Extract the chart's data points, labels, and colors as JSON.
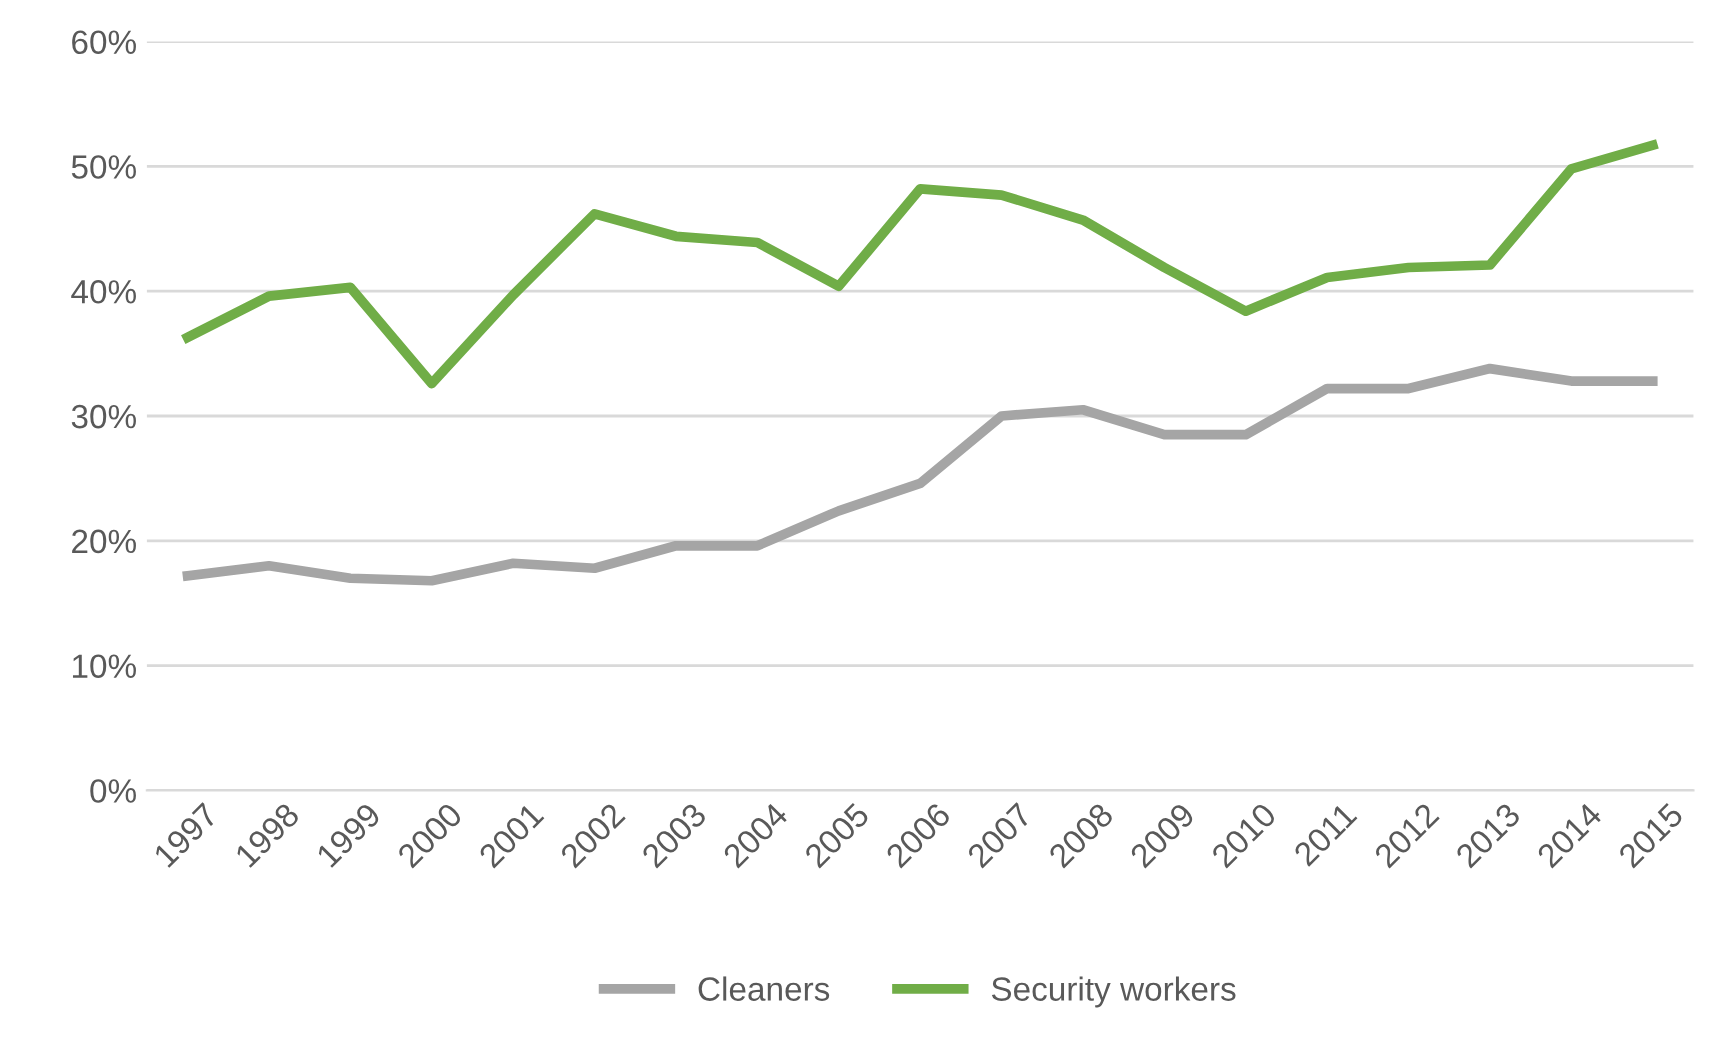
{
  "chart_data": {
    "type": "line",
    "categories": [
      "1997",
      "1998",
      "1999",
      "2000",
      "2001",
      "2002",
      "2003",
      "2004",
      "2005",
      "2006",
      "2007",
      "2008",
      "2009",
      "2010",
      "2011",
      "2012",
      "2013",
      "2014",
      "2015"
    ],
    "series": [
      {
        "name": "Cleaners",
        "color": "#a5a5a5",
        "values": [
          17.2,
          18.0,
          17.0,
          16.8,
          18.2,
          17.8,
          19.6,
          19.6,
          22.4,
          24.6,
          30.0,
          30.5,
          28.5,
          28.5,
          32.2,
          32.2,
          33.8,
          32.8,
          32.8
        ]
      },
      {
        "name": "Security workers",
        "color": "#70ad47",
        "values": [
          36.3,
          39.6,
          40.3,
          32.6,
          39.7,
          46.2,
          44.4,
          43.9,
          40.4,
          48.2,
          47.7,
          45.7,
          41.9,
          38.4,
          41.1,
          41.9,
          42.1,
          49.8,
          51.7
        ]
      }
    ],
    "ylim": [
      0,
      60
    ],
    "yticks": [
      {
        "value": 0,
        "label": "0%"
      },
      {
        "value": 10,
        "label": "10%"
      },
      {
        "value": 20,
        "label": "20%"
      },
      {
        "value": 30,
        "label": "30%"
      },
      {
        "value": 40,
        "label": "40%"
      },
      {
        "value": 50,
        "label": "50%"
      },
      {
        "value": 60,
        "label": "60%"
      }
    ],
    "grid": "y",
    "legend": "bottom",
    "marker": "none",
    "line_style": "solid"
  }
}
